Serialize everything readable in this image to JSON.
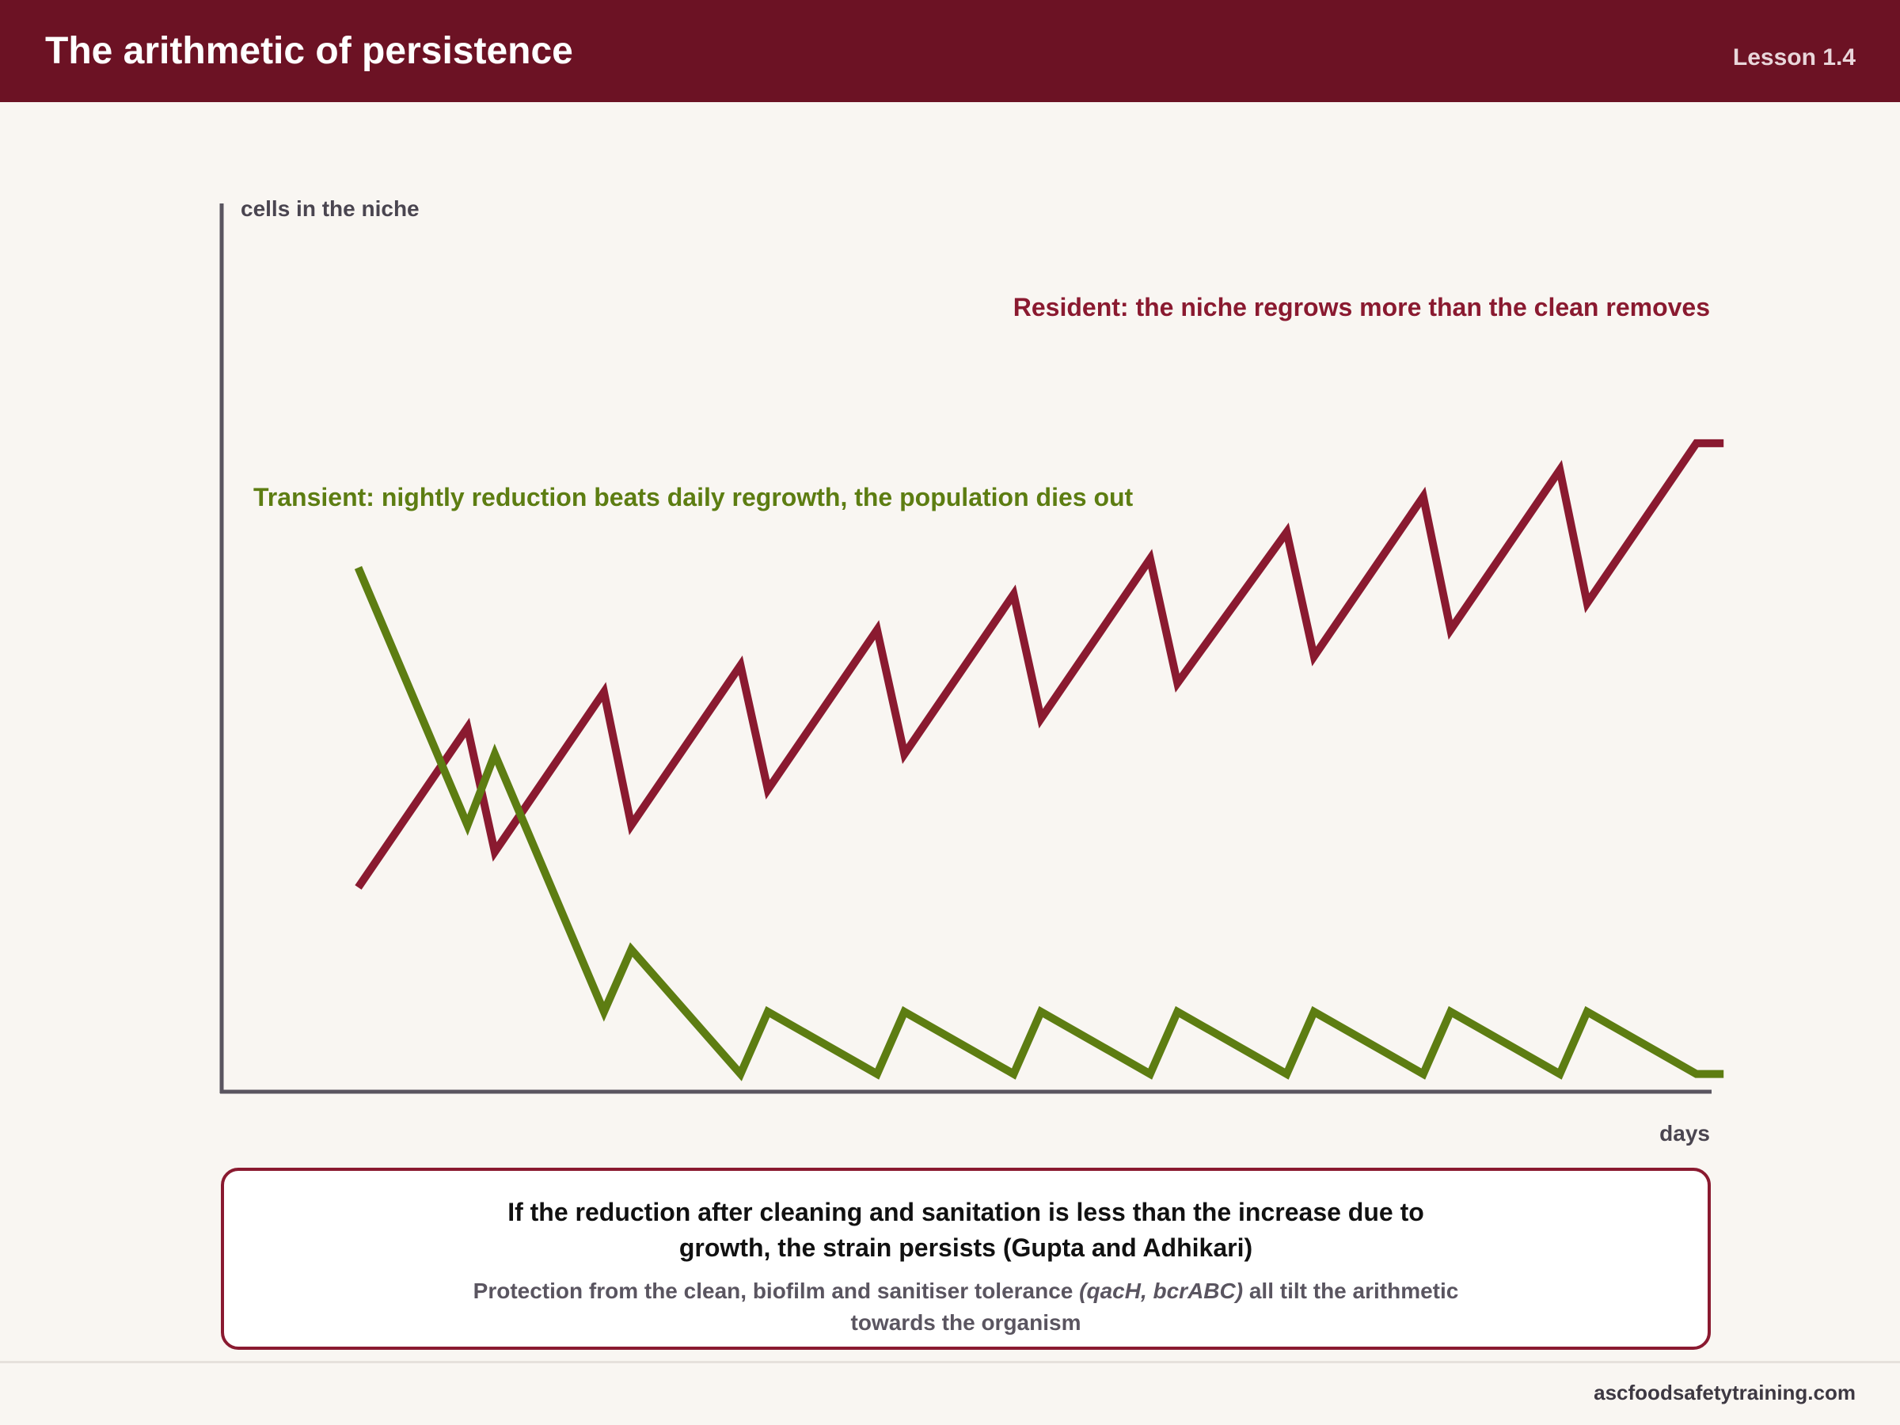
{
  "header": {
    "title": "The arithmetic of persistence",
    "lesson": "Lesson 1.4"
  },
  "colors": {
    "brand": "#6c1224",
    "resident": "#8a1a30",
    "transient": "#5d7d12",
    "axis": "#5a5560"
  },
  "chart_data": {
    "type": "line",
    "ylabel": "cells in the niche",
    "xlabel": "days",
    "x": [
      1,
      1.8,
      2,
      2.8,
      3,
      3.8,
      4,
      4.8,
      5,
      5.8,
      6,
      6.8,
      7,
      7.8,
      8,
      8.8,
      9,
      9.8,
      10,
      10.8,
      11
    ],
    "xlim": [
      0,
      10.9
    ],
    "ylim": [
      0,
      100
    ],
    "grid": false,
    "series": [
      {
        "name": "Resident: the niche regrows more than the clean removes",
        "values": [
          23,
          41,
          27,
          45,
          30,
          48,
          34,
          52,
          38,
          56,
          42,
          60,
          46,
          63,
          49,
          67,
          52,
          70,
          55,
          73,
          73
        ]
      },
      {
        "name": "Transient: nightly reduction beats daily regrowth, the population dies out",
        "values": [
          59,
          30,
          38,
          9,
          16,
          2,
          9,
          2,
          9,
          2,
          9,
          2,
          9,
          2,
          9,
          2,
          9,
          2,
          9,
          2,
          2
        ]
      }
    ]
  },
  "callout": {
    "main": "If the reduction after cleaning and sanitation is less than the increase due to growth, the strain persists (Gupta and Adhikari)",
    "sub_before": "Protection from the clean, biofilm and sanitiser tolerance ",
    "sub_genes": "(qacH, bcrABC)",
    "sub_after": " all tilt the arithmetic towards the organism"
  },
  "footer": {
    "site": "ascfoodsafetytraining.com"
  }
}
